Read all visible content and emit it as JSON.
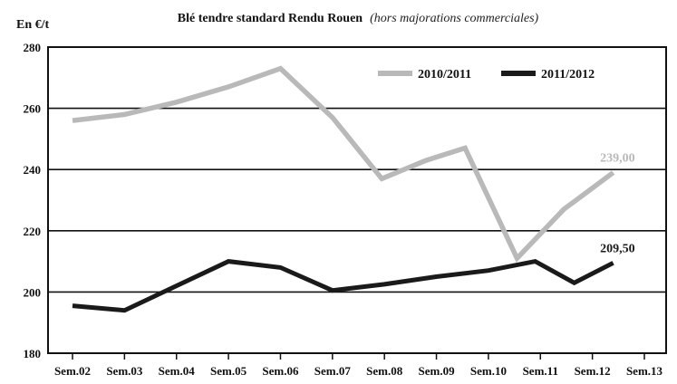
{
  "chart_data": {
    "type": "line",
    "title": "Blé tendre standard Rendu Rouen",
    "subtitle": "(hors majorations commerciales)",
    "ylabel": "En €/t",
    "xlabel": "",
    "categories": [
      "Sem.02",
      "Sem.03",
      "Sem.04",
      "Sem.05",
      "Sem.06",
      "Sem.07",
      "Sem.08",
      "Sem.09",
      "Sem.10",
      "Sem.11",
      "Sem.12",
      "Sem.13"
    ],
    "y_ticks": [
      "180",
      "200",
      "220",
      "240",
      "260",
      "280"
    ],
    "ylim": [
      180,
      280
    ],
    "grid": true,
    "legend_position": "top-right",
    "series": [
      {
        "name": "2010/2011",
        "color": "#b9b9b9",
        "points": [
          {
            "x": 0,
            "y": 256
          },
          {
            "x": 1,
            "y": 258
          },
          {
            "x": 2,
            "y": 262
          },
          {
            "x": 3,
            "y": 267
          },
          {
            "x": 4,
            "y": 273
          },
          {
            "x": 5,
            "y": 257
          },
          {
            "x": 5.95,
            "y": 237
          },
          {
            "x": 6.8,
            "y": 243
          },
          {
            "x": 7.55,
            "y": 247
          },
          {
            "x": 8.55,
            "y": 211
          },
          {
            "x": 9.45,
            "y": 227
          },
          {
            "x": 10.4,
            "y": 239
          }
        ]
      },
      {
        "name": "2011/2012",
        "color": "#1a1a1a",
        "points": [
          {
            "x": 0,
            "y": 195.5
          },
          {
            "x": 1,
            "y": 194
          },
          {
            "x": 2,
            "y": 202
          },
          {
            "x": 3,
            "y": 210
          },
          {
            "x": 4,
            "y": 208
          },
          {
            "x": 5,
            "y": 200.5
          },
          {
            "x": 6,
            "y": 202.5
          },
          {
            "x": 7,
            "y": 205
          },
          {
            "x": 8,
            "y": 207
          },
          {
            "x": 8.9,
            "y": 210
          },
          {
            "x": 9.65,
            "y": 203
          },
          {
            "x": 10.4,
            "y": 209.5
          }
        ]
      }
    ],
    "annotations": [
      {
        "text": "239,00",
        "series": 0,
        "color": "#b9b9b9"
      },
      {
        "text": "209,50",
        "series": 1,
        "color": "#1a1a1a"
      }
    ]
  }
}
